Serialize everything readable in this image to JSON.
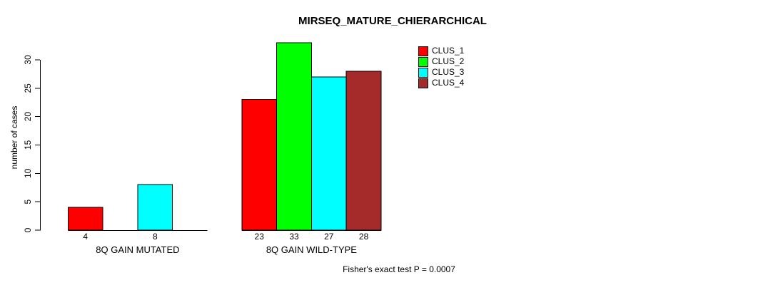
{
  "chart_data": {
    "type": "bar",
    "title": "MIRSEQ_MATURE_CHIERARCHICAL",
    "ylabel": "number of cases",
    "xlabel": "",
    "ylim": [
      0,
      30
    ],
    "yticks": [
      0,
      5,
      10,
      15,
      20,
      25,
      30
    ],
    "grid": false,
    "legend_position": "top-right",
    "axis_color": "#000000",
    "bar_border_color": "#000000",
    "series": [
      {
        "name": "CLUS_1",
        "color": "#FF0000"
      },
      {
        "name": "CLUS_2",
        "color": "#00FF00"
      },
      {
        "name": "CLUS_3",
        "color": "#00FFFF"
      },
      {
        "name": "CLUS_4",
        "color": "#A52A2A"
      }
    ],
    "categories": [
      "8Q GAIN MUTATED",
      "8Q GAIN WILD-TYPE"
    ],
    "groups": [
      {
        "label": "8Q GAIN MUTATED",
        "values": [
          4,
          0,
          8,
          0
        ],
        "bar_labels": [
          "4",
          "",
          "8",
          ""
        ]
      },
      {
        "label": "8Q GAIN WILD-TYPE",
        "values": [
          23,
          33,
          27,
          28
        ],
        "bar_labels": [
          "23",
          "33",
          "27",
          "28"
        ]
      }
    ],
    "annotation": "Fisher's exact test P = 0.0007"
  }
}
